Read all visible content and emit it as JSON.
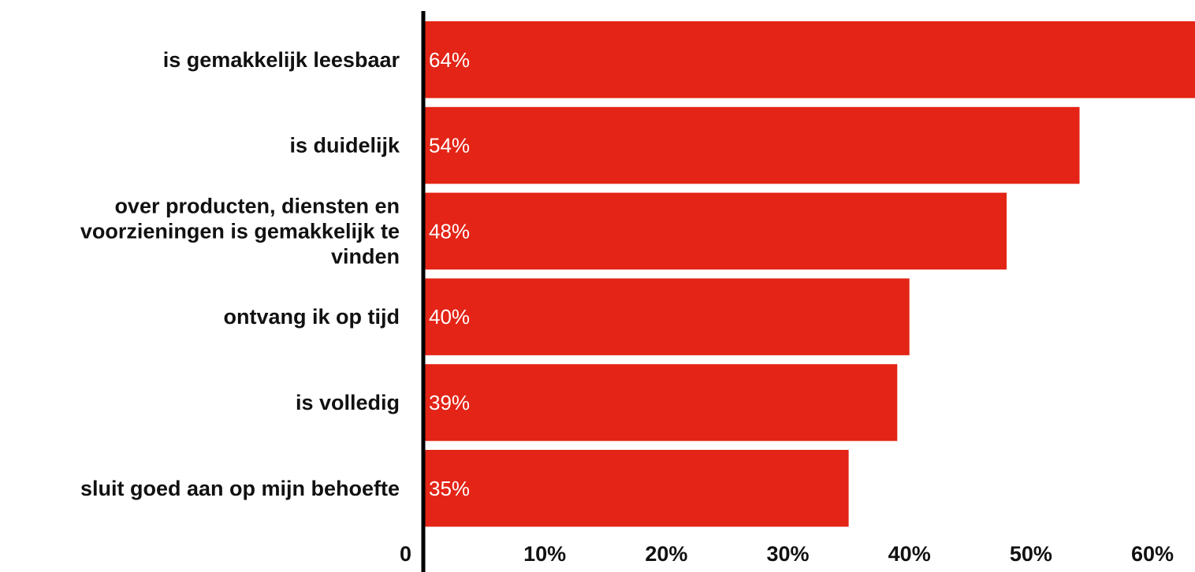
{
  "chart_data": {
    "type": "bar",
    "orientation": "horizontal",
    "categories": [
      [
        "is gemakkelijk leesbaar"
      ],
      [
        "is duidelijk"
      ],
      [
        "over producten, diensten en",
        "voorzieningen is gemakkelijk te",
        "vinden"
      ],
      [
        "ontvang ik op tijd"
      ],
      [
        "is volledig"
      ],
      [
        "sluit goed aan op mijn behoefte"
      ]
    ],
    "values": [
      64,
      54,
      48,
      40,
      39,
      35
    ],
    "data_labels": [
      "64%",
      "54%",
      "48%",
      "40%",
      "39%",
      "35%"
    ],
    "xticks": [
      0,
      10,
      20,
      30,
      40,
      50,
      60
    ],
    "xtick_labels": [
      "0",
      "10%",
      "20%",
      "30%",
      "40%",
      "50%",
      "60%"
    ],
    "xlim": [
      0,
      63.5
    ],
    "title": "",
    "xlabel": "",
    "ylabel": "",
    "grid": false,
    "legend": false,
    "bar_color": "#e32416",
    "axis_color": "#000000"
  }
}
